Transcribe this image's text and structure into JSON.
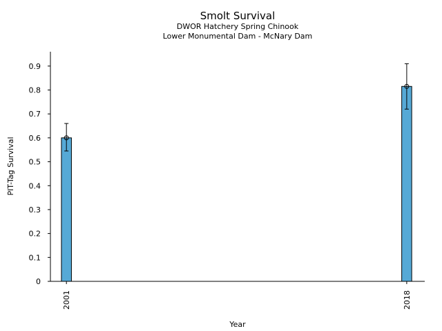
{
  "chart_data": {
    "type": "bar",
    "title": "Smolt Survival",
    "subtitle_lines": [
      "DWOR Hatchery Spring Chinook",
      "Lower Monumental Dam - McNary Dam"
    ],
    "xlabel": "Year",
    "ylabel": "PIT-Tag Survival",
    "categories": [
      "2001",
      "2018"
    ],
    "x_values": [
      2001,
      2018
    ],
    "values": [
      0.6,
      0.815
    ],
    "error_low": [
      0.545,
      0.72
    ],
    "error_high": [
      0.66,
      0.91
    ],
    "ylim": [
      0,
      0.96
    ],
    "xlim": [
      2000.2,
      2018.9
    ],
    "yticks": [
      0,
      0.1,
      0.2,
      0.3,
      0.4,
      0.5,
      0.6,
      0.7,
      0.8,
      0.9
    ],
    "ytick_labels": [
      "0",
      "0.1",
      "0.2",
      "0.3",
      "0.4",
      "0.5",
      "0.6",
      "0.7",
      "0.8",
      "0.9"
    ],
    "bar_width_years": 0.5,
    "bar_color": "#56a9d6",
    "grid": false
  }
}
